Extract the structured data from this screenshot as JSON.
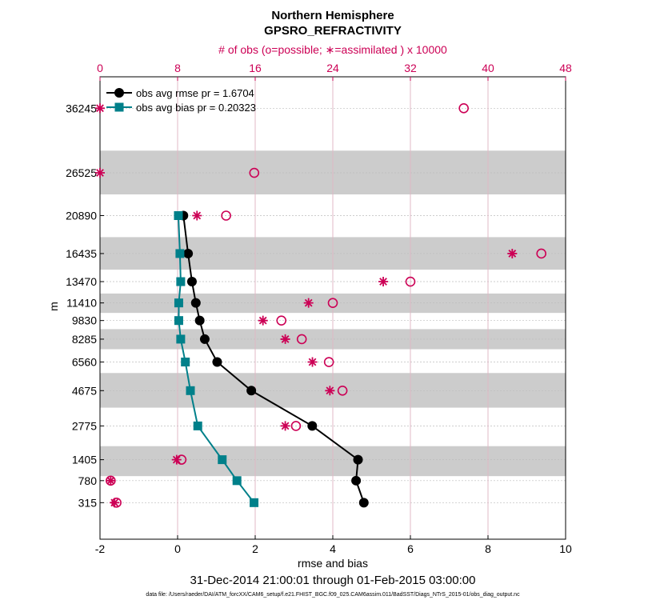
{
  "chart_data": {
    "type": "line",
    "title": "Northern Hemisphere",
    "subtitle": "GPSRO_REFRACTIVITY",
    "xlabel": "rmse and bias",
    "ylabel": "m",
    "xlim": [
      -2,
      10
    ],
    "x_ticks": [
      -2,
      0,
      2,
      4,
      6,
      8,
      10
    ],
    "top_axis": {
      "label": "# of obs (o=possible; ∗=assimilated ) x 10000",
      "lim": [
        0,
        48
      ],
      "ticks": [
        0,
        8,
        16,
        24,
        32,
        40,
        48
      ]
    },
    "levels": [
      36245,
      26525,
      20890,
      16435,
      13470,
      11410,
      9830,
      8285,
      6560,
      4675,
      2775,
      1405,
      780,
      315
    ],
    "series": [
      {
        "name": "obs avg rmse pr = 1.6704",
        "color": "#000000",
        "marker": "circle",
        "points": [
          {
            "level": 20890,
            "value": 0.15
          },
          {
            "level": 16435,
            "value": 0.27
          },
          {
            "level": 13470,
            "value": 0.37
          },
          {
            "level": 11410,
            "value": 0.47
          },
          {
            "level": 9830,
            "value": 0.57
          },
          {
            "level": 8285,
            "value": 0.7
          },
          {
            "level": 6560,
            "value": 1.02
          },
          {
            "level": 4675,
            "value": 1.9
          },
          {
            "level": 2775,
            "value": 3.47
          },
          {
            "level": 1405,
            "value": 4.65
          },
          {
            "level": 780,
            "value": 4.6
          },
          {
            "level": 315,
            "value": 4.8
          }
        ]
      },
      {
        "name": "obs avg bias pr = 0.20323",
        "color": "#00808a",
        "marker": "square",
        "points": [
          {
            "level": 20890,
            "value": 0.02
          },
          {
            "level": 16435,
            "value": 0.06
          },
          {
            "level": 13470,
            "value": 0.08
          },
          {
            "level": 11410,
            "value": 0.03
          },
          {
            "level": 9830,
            "value": 0.03
          },
          {
            "level": 8285,
            "value": 0.08
          },
          {
            "level": 6560,
            "value": 0.2
          },
          {
            "level": 4675,
            "value": 0.33
          },
          {
            "level": 2775,
            "value": 0.52
          },
          {
            "level": 1405,
            "value": 1.15
          },
          {
            "level": 780,
            "value": 1.53
          },
          {
            "level": 315,
            "value": 1.97
          }
        ]
      }
    ],
    "obs_possible": [
      {
        "level": 36245,
        "count": 37.5
      },
      {
        "level": 26525,
        "count": 15.9
      },
      {
        "level": 20890,
        "count": 13.0
      },
      {
        "level": 16435,
        "count": 45.5
      },
      {
        "level": 13470,
        "count": 32.0
      },
      {
        "level": 11410,
        "count": 24.0
      },
      {
        "level": 9830,
        "count": 18.7
      },
      {
        "level": 8285,
        "count": 20.8
      },
      {
        "level": 6560,
        "count": 23.6
      },
      {
        "level": 4675,
        "count": 25.0
      },
      {
        "level": 2775,
        "count": 20.2
      },
      {
        "level": 1405,
        "count": 8.4
      },
      {
        "level": 780,
        "count": 1.1
      },
      {
        "level": 315,
        "count": 1.7
      }
    ],
    "obs_assimilated": [
      {
        "level": 36245,
        "count": 0.0
      },
      {
        "level": 26525,
        "count": 0.0
      },
      {
        "level": 20890,
        "count": 10.0
      },
      {
        "level": 16435,
        "count": 42.5
      },
      {
        "level": 13470,
        "count": 29.2
      },
      {
        "level": 11410,
        "count": 21.5
      },
      {
        "level": 9830,
        "count": 16.8
      },
      {
        "level": 8285,
        "count": 19.1
      },
      {
        "level": 6560,
        "count": 21.9
      },
      {
        "level": 4675,
        "count": 23.7
      },
      {
        "level": 2775,
        "count": 19.1
      },
      {
        "level": 1405,
        "count": 7.9
      },
      {
        "level": 780,
        "count": 1.1
      },
      {
        "level": 315,
        "count": 1.5
      }
    ],
    "layer_bands": [
      {
        "from": 23600,
        "to": 29700
      },
      {
        "from": 14700,
        "to": 18300
      },
      {
        "from": 10500,
        "to": 12300
      },
      {
        "from": 7500,
        "to": 9100
      },
      {
        "from": 3700,
        "to": 5800
      },
      {
        "from": 900,
        "to": 1900
      }
    ],
    "grid": true,
    "legend_position": "top-left"
  },
  "footer": {
    "date_range": "31-Dec-2014 21:00:01 through 01-Feb-2015 03:00:00",
    "data_file": "data file: /Users/raeder/DAI/ATM_forcXX/CAM6_setup/f.e21.FHIST_BGC.f09_025.CAM6assim.011/BadSST/Diags_NTrS_2015-01/obs_diag_output.nc"
  },
  "colors": {
    "obs_marker": "#cc0055",
    "band": "#cccccc",
    "top_grid": "#e4b3c4"
  }
}
